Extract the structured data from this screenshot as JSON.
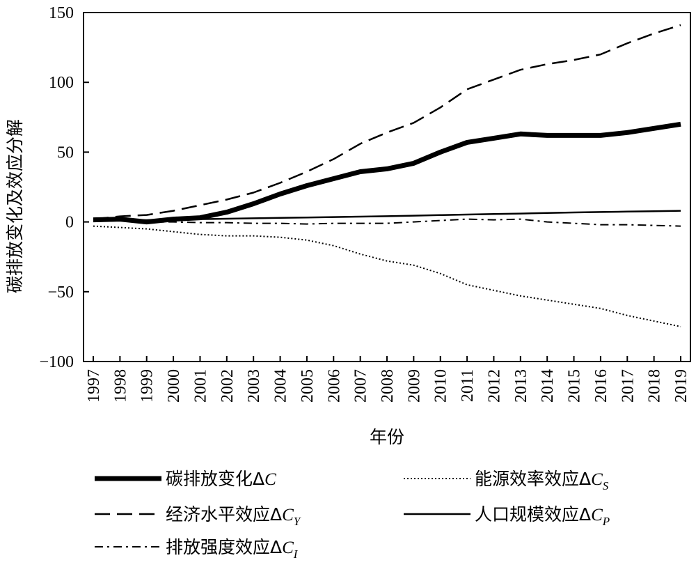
{
  "chart_data": {
    "type": "line",
    "xlabel": "年份",
    "ylabel": "碳排放变化及效应分解",
    "ylim": [
      -100,
      150
    ],
    "yticks": [
      -100,
      -50,
      0,
      50,
      100,
      150
    ],
    "ytick_labels": [
      "−100",
      "−50",
      "0",
      "50",
      "100",
      "150"
    ],
    "grid": false,
    "legend_position": "bottom",
    "categories": [
      "1997",
      "1998",
      "1999",
      "2000",
      "2001",
      "2002",
      "2003",
      "2004",
      "2005",
      "2006",
      "2007",
      "2008",
      "2009",
      "2010",
      "2011",
      "2012",
      "2013",
      "2014",
      "2015",
      "2016",
      "2017",
      "2018",
      "2019"
    ],
    "series": [
      {
        "name": "碳排放变化ΔC",
        "name_main": "碳排放变化Δ",
        "name_var": "C",
        "name_sub": "",
        "style": "thick",
        "values": [
          1.5,
          2,
          0,
          2,
          3,
          7,
          13,
          20,
          26,
          31,
          36,
          38,
          42,
          50,
          57,
          60,
          63,
          62,
          62,
          62,
          64,
          67,
          70
        ]
      },
      {
        "name": "经济水平效应ΔC_Y",
        "name_main": "经济水平效应Δ",
        "name_var": "C",
        "name_sub": "Y",
        "style": "dashed",
        "values": [
          2,
          4,
          5,
          8,
          12,
          16,
          21,
          28,
          36,
          45,
          56,
          64,
          71,
          82,
          95,
          102,
          109,
          113,
          116,
          120,
          128,
          135,
          141
        ]
      },
      {
        "name": "排放强度效应ΔC_I",
        "name_main": "排放强度效应Δ",
        "name_var": "C",
        "name_sub": "I",
        "style": "dashdot",
        "values": [
          2,
          1,
          0,
          0,
          -0.5,
          -0.5,
          -1,
          -1,
          -1.5,
          -1,
          -1,
          -1,
          0,
          1,
          2,
          1.5,
          2,
          0,
          -1,
          -2,
          -2,
          -2.5,
          -3
        ]
      },
      {
        "name": "能源效率效应ΔC_S",
        "name_main": "能源效率效应Δ",
        "name_var": "C",
        "name_sub": "S",
        "style": "dotted",
        "values": [
          -3,
          -4,
          -5,
          -7,
          -9,
          -10,
          -10,
          -11,
          -13,
          -17,
          -23,
          -28,
          -31,
          -37,
          -45,
          -49,
          -53,
          -56,
          -59,
          -62,
          -67,
          -71,
          -75
        ]
      },
      {
        "name": "人口规模效应ΔC_P",
        "name_main": "人口规模效应Δ",
        "name_var": "C",
        "name_sub": "P",
        "style": "solid",
        "values": [
          0.5,
          1,
          1.3,
          1.6,
          2,
          2.3,
          2.6,
          2.9,
          3.2,
          3.5,
          3.8,
          4.1,
          4.5,
          4.9,
          5.3,
          5.7,
          6,
          6.4,
          6.8,
          7.1,
          7.4,
          7.7,
          8
        ]
      }
    ]
  }
}
